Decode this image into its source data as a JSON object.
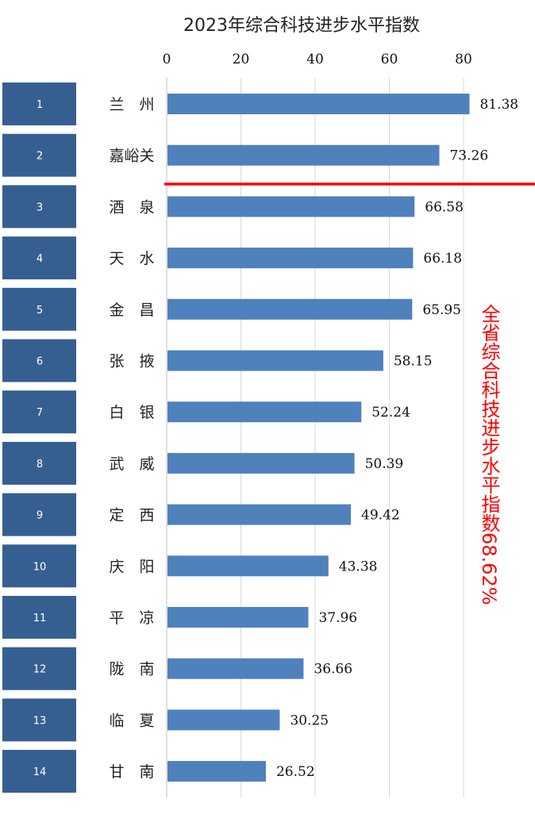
{
  "chart_data": {
    "type": "bar",
    "orientation": "horizontal",
    "title": "2023年综合科技进步水平指数",
    "xlim": [
      0,
      80
    ],
    "xticks": [
      "0",
      "20",
      "40",
      "60",
      "80"
    ],
    "grid": true,
    "ranks": [
      "1",
      "2",
      "3",
      "4",
      "5",
      "6",
      "7",
      "8",
      "9",
      "10",
      "11",
      "12",
      "13",
      "14"
    ],
    "categories": [
      "兰　州",
      "嘉峪关",
      "酒　泉",
      "天　水",
      "金　昌",
      "张　掖",
      "白　银",
      "武　威",
      "定　西",
      "庆　阳",
      "平　凉",
      "陇　南",
      "临　夏",
      "甘　南"
    ],
    "values": [
      81.38,
      73.26,
      66.58,
      66.18,
      65.95,
      58.15,
      52.24,
      50.39,
      49.42,
      43.38,
      37.96,
      36.66,
      30.25,
      26.52
    ],
    "value_labels": [
      "81.38",
      "73.26",
      "66.58",
      "66.18",
      "65.95",
      "58.15",
      "52.24",
      "50.39",
      "49.42",
      "43.38",
      "37.96",
      "36.66",
      "30.25",
      "26.52"
    ],
    "annotation": "全省综合科技进步水平指数68.62%",
    "threshold_after_rank": 2
  },
  "colors": {
    "bar": "#4f81bd",
    "rank_box": "#365f91",
    "annotation": "#ff0000",
    "grid": "#d9d9d9"
  }
}
